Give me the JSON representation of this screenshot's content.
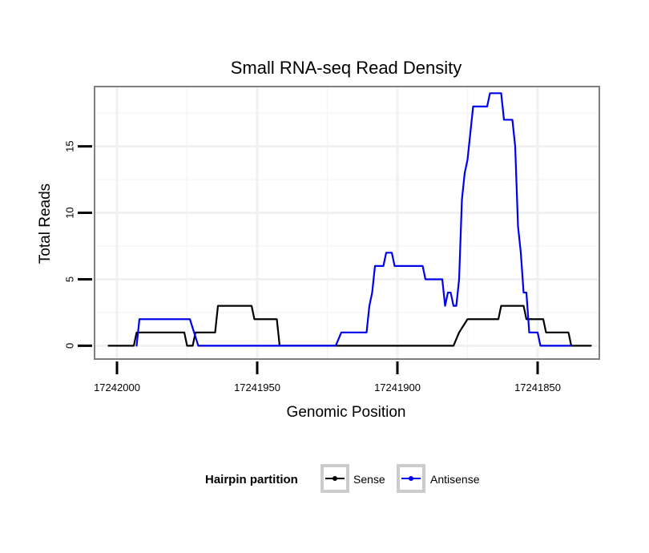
{
  "chart_data": {
    "type": "line",
    "title": "Small RNA-seq Read Density",
    "xlabel": "Genomic Position",
    "ylabel": "Total Reads",
    "x_reversed": true,
    "xlim": [
      17242008,
      17241828
    ],
    "ylim": [
      -1,
      19.5
    ],
    "x_ticks": [
      17242000,
      17241950,
      17241900,
      17241850
    ],
    "x_tick_labels": [
      "17242000",
      "17241950",
      "17241900",
      "17241850"
    ],
    "y_ticks": [
      0,
      5,
      10,
      15
    ],
    "y_tick_labels": [
      "0",
      "5",
      "10",
      "15"
    ],
    "grid": true,
    "legend": {
      "title": "Hairpin partition",
      "position": "bottom",
      "entries": [
        "Sense",
        "Antisense"
      ]
    },
    "series": [
      {
        "name": "Sense",
        "color": "#000000",
        "points": [
          [
            17242003,
            0
          ],
          [
            17241994,
            0
          ],
          [
            17241993,
            1
          ],
          [
            17241976,
            1
          ],
          [
            17241975,
            0
          ],
          [
            17241973,
            0
          ],
          [
            17241972,
            1
          ],
          [
            17241965,
            1
          ],
          [
            17241964,
            3
          ],
          [
            17241952,
            3
          ],
          [
            17241951,
            2
          ],
          [
            17241943,
            2
          ],
          [
            17241942,
            0
          ],
          [
            17241880,
            0
          ],
          [
            17241878,
            1
          ],
          [
            17241875,
            2
          ],
          [
            17241864,
            2
          ],
          [
            17241863,
            3
          ],
          [
            17241855,
            3
          ],
          [
            17241854,
            2
          ],
          [
            17241848,
            2
          ],
          [
            17241847,
            1
          ],
          [
            17241839,
            1
          ],
          [
            17241838,
            0
          ],
          [
            17241831,
            0
          ]
        ]
      },
      {
        "name": "Antisense",
        "color": "#0000ee",
        "points": [
          [
            17241993,
            0
          ],
          [
            17241992,
            2
          ],
          [
            17241974,
            2
          ],
          [
            17241971,
            0
          ],
          [
            17241922,
            0
          ],
          [
            17241920,
            1
          ],
          [
            17241911,
            1
          ],
          [
            17241910,
            3
          ],
          [
            17241909,
            4
          ],
          [
            17241908,
            6
          ],
          [
            17241905,
            6
          ],
          [
            17241904,
            7
          ],
          [
            17241902,
            7
          ],
          [
            17241901,
            6
          ],
          [
            17241891,
            6
          ],
          [
            17241890,
            5
          ],
          [
            17241884,
            5
          ],
          [
            17241883,
            3
          ],
          [
            17241882,
            4
          ],
          [
            17241881,
            4
          ],
          [
            17241880,
            3
          ],
          [
            17241879,
            3
          ],
          [
            17241878,
            5
          ],
          [
            17241877,
            11
          ],
          [
            17241876,
            13
          ],
          [
            17241875,
            14
          ],
          [
            17241874,
            16
          ],
          [
            17241873,
            18
          ],
          [
            17241868,
            18
          ],
          [
            17241867,
            19
          ],
          [
            17241863,
            19
          ],
          [
            17241862,
            17
          ],
          [
            17241859,
            17
          ],
          [
            17241858,
            15
          ],
          [
            17241857,
            9
          ],
          [
            17241856,
            7
          ],
          [
            17241855,
            4
          ],
          [
            17241854,
            4
          ],
          [
            17241853,
            1
          ],
          [
            17241850,
            1
          ],
          [
            17241849,
            0
          ],
          [
            17241838,
            0
          ]
        ]
      }
    ]
  }
}
